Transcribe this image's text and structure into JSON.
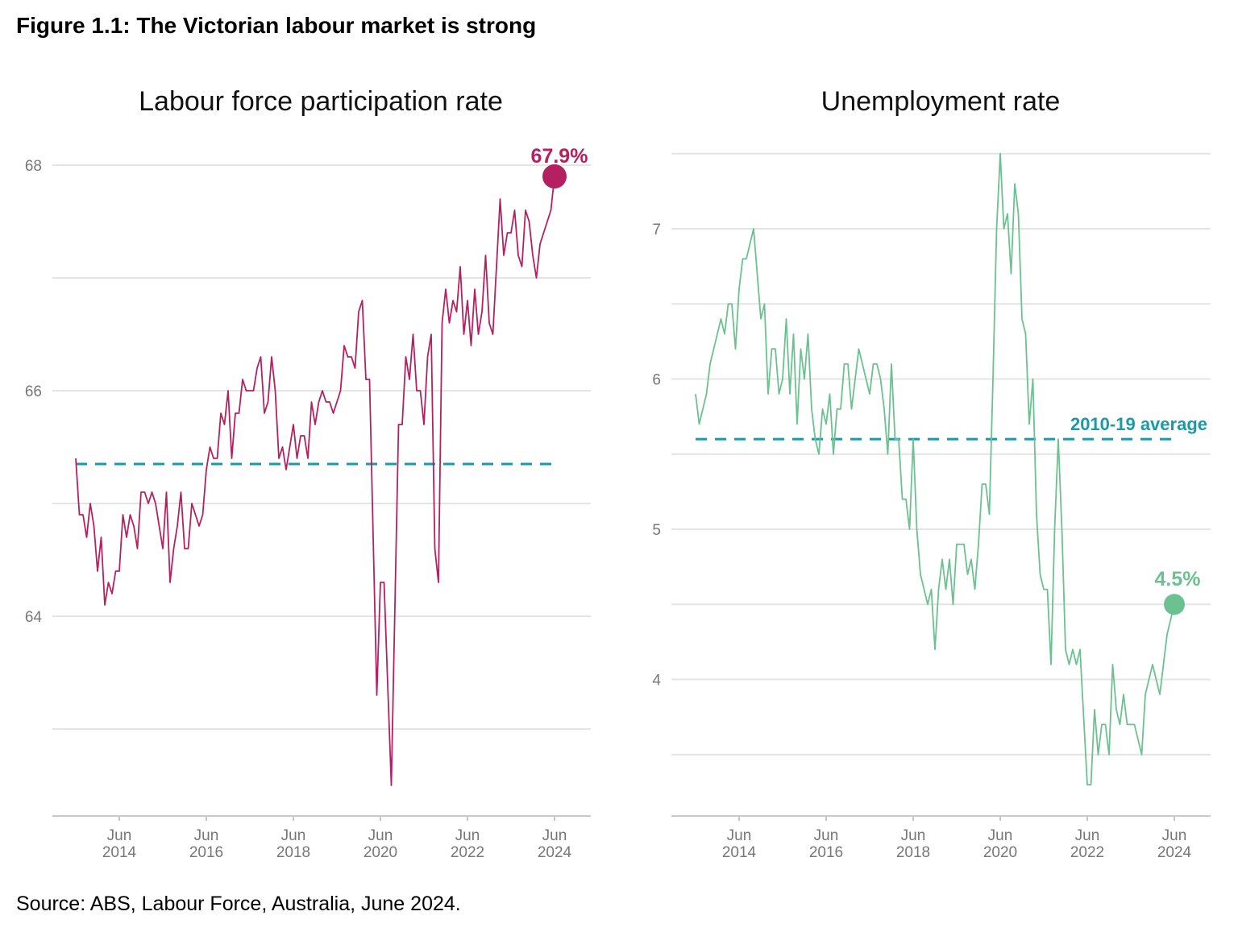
{
  "figure_title": "Figure 1.1:  The Victorian labour market is strong",
  "source": "Source: ABS, Labour Force, Australia, June 2024.",
  "colors": {
    "participation": "#b52160",
    "unemployment": "#6cc190",
    "average": "#1a9aa9",
    "grid": "#e4e4e4"
  },
  "chart_data": [
    {
      "type": "line",
      "title": "Labour force participation rate",
      "x_start": "Jun 2013",
      "x_frequency": "monthly",
      "x_ticks": [
        [
          "Jun",
          "2014"
        ],
        [
          "Jun",
          "2016"
        ],
        [
          "Jun",
          "2018"
        ],
        [
          "Jun",
          "2020"
        ],
        [
          "Jun",
          "2022"
        ],
        [
          "Jun",
          "2024"
        ]
      ],
      "y_ticks": [
        "64",
        "66",
        "68"
      ],
      "ylim": [
        62.23,
        68.3
      ],
      "grid": true,
      "values": [
        65.4,
        64.9,
        64.9,
        64.7,
        65.0,
        64.8,
        64.4,
        64.7,
        64.1,
        64.3,
        64.2,
        64.4,
        64.4,
        64.9,
        64.7,
        64.9,
        64.8,
        64.6,
        65.1,
        65.1,
        65.0,
        65.1,
        65.0,
        64.8,
        64.6,
        65.1,
        64.3,
        64.6,
        64.8,
        65.1,
        64.6,
        64.6,
        65.0,
        64.9,
        64.8,
        64.9,
        65.3,
        65.5,
        65.4,
        65.4,
        65.8,
        65.7,
        66.0,
        65.4,
        65.8,
        65.8,
        66.1,
        66.0,
        66.0,
        66.0,
        66.2,
        66.3,
        65.8,
        65.9,
        66.3,
        66.0,
        65.4,
        65.5,
        65.3,
        65.5,
        65.7,
        65.4,
        65.6,
        65.6,
        65.4,
        65.9,
        65.7,
        65.9,
        66.0,
        65.9,
        65.9,
        65.8,
        65.9,
        66.0,
        66.4,
        66.3,
        66.3,
        66.2,
        66.7,
        66.8,
        66.1,
        66.1,
        64.7,
        63.3,
        64.3,
        64.3,
        63.4,
        62.5,
        64.1,
        65.7,
        65.7,
        66.3,
        66.1,
        66.5,
        66.0,
        66.0,
        65.7,
        66.3,
        66.5,
        64.6,
        64.3,
        66.6,
        66.9,
        66.6,
        66.8,
        66.7,
        67.1,
        66.5,
        66.8,
        66.4,
        66.9,
        66.5,
        66.7,
        67.2,
        66.6,
        66.5,
        67.1,
        67.7,
        67.2,
        67.4,
        67.4,
        67.6,
        67.2,
        67.1,
        67.6,
        67.5,
        67.2,
        67.0,
        67.3,
        67.4,
        67.5,
        67.6,
        67.9
      ],
      "average": {
        "value": 65.35,
        "label": ""
      },
      "end_label": "67.9%"
    },
    {
      "type": "line",
      "title": "Unemployment rate",
      "x_start": "Jun 2013",
      "x_frequency": "monthly",
      "x_ticks": [
        [
          "Jun",
          "2014"
        ],
        [
          "Jun",
          "2016"
        ],
        [
          "Jun",
          "2018"
        ],
        [
          "Jun",
          "2020"
        ],
        [
          "Jun",
          "2022"
        ],
        [
          "Jun",
          "2024"
        ]
      ],
      "y_ticks": [
        "4",
        "5",
        "6",
        "7"
      ],
      "ylim": [
        3.1,
        7.5
      ],
      "grid": true,
      "values": [
        5.9,
        5.7,
        5.8,
        5.9,
        6.1,
        6.2,
        6.3,
        6.4,
        6.3,
        6.5,
        6.5,
        6.2,
        6.6,
        6.8,
        6.8,
        6.9,
        7.0,
        6.7,
        6.4,
        6.5,
        5.9,
        6.2,
        6.2,
        5.9,
        6.0,
        6.4,
        5.9,
        6.3,
        5.7,
        6.2,
        6.0,
        6.3,
        5.8,
        5.6,
        5.5,
        5.8,
        5.7,
        5.9,
        5.5,
        5.8,
        5.8,
        6.1,
        6.1,
        5.8,
        6.0,
        6.2,
        6.1,
        6.0,
        5.9,
        6.1,
        6.1,
        6.0,
        5.8,
        5.5,
        6.1,
        5.6,
        5.6,
        5.2,
        5.2,
        5.0,
        5.6,
        5.0,
        4.7,
        4.6,
        4.5,
        4.6,
        4.2,
        4.6,
        4.8,
        4.6,
        4.8,
        4.5,
        4.9,
        4.9,
        4.9,
        4.7,
        4.8,
        4.6,
        4.9,
        5.3,
        5.3,
        5.1,
        6.0,
        7.0,
        7.5,
        7.0,
        7.1,
        6.7,
        7.3,
        7.1,
        6.4,
        6.3,
        5.7,
        6.0,
        5.1,
        4.7,
        4.6,
        4.6,
        4.1,
        5.0,
        5.6,
        5.0,
        4.2,
        4.1,
        4.2,
        4.1,
        4.2,
        3.75,
        3.3,
        3.3,
        3.8,
        3.5,
        3.7,
        3.7,
        3.5,
        4.1,
        3.8,
        3.7,
        3.9,
        3.7,
        3.7,
        3.7,
        3.6,
        3.5,
        3.9,
        4.0,
        4.1,
        4.0,
        3.9,
        4.1,
        4.3,
        4.4,
        4.5
      ],
      "average": {
        "value": 5.6,
        "label": "2010-19 average"
      },
      "end_label": "4.5%"
    }
  ]
}
